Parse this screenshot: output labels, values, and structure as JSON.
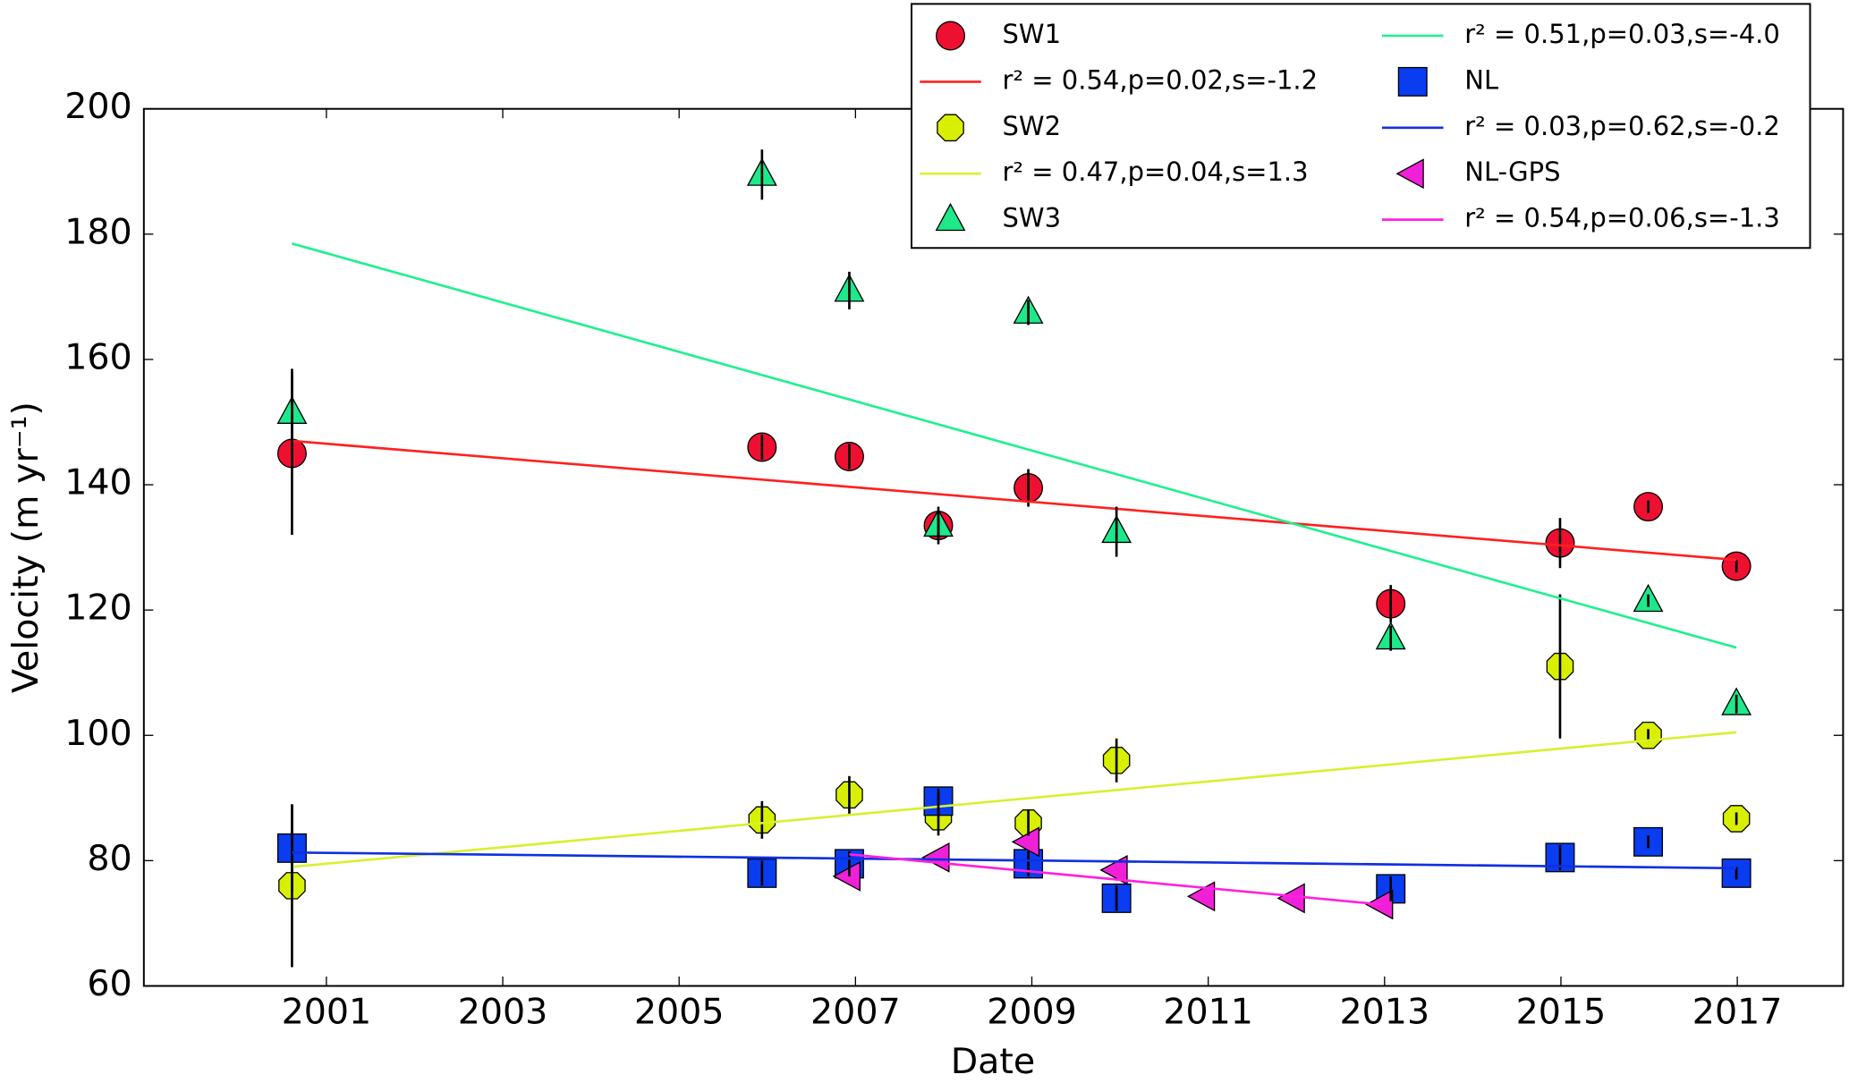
{
  "chart_data": {
    "type": "scatter",
    "xlabel": "Date",
    "ylabel": "Velocity (m yr⁻¹)",
    "xlim": [
      1998.93,
      2018.2
    ],
    "xticks": [
      2001,
      2003,
      2005,
      2007,
      2009,
      2011,
      2013,
      2015,
      2017
    ],
    "ylim": [
      60,
      200
    ],
    "yticks": [
      60,
      80,
      100,
      120,
      140,
      160,
      180,
      200
    ],
    "series": [
      {
        "name": "SW1",
        "color": "#ee1030",
        "marker": "circle",
        "x": [
          2000.61,
          2005.94,
          2006.93,
          2007.94,
          2008.96,
          2013.07,
          2014.99,
          2015.99,
          2016.99
        ],
        "values": [
          145,
          146,
          144.5,
          133.5,
          139.5,
          121,
          130.7,
          136.5,
          127
        ],
        "errors": [
          13,
          2,
          2,
          2,
          3,
          3,
          4,
          1,
          1
        ],
        "fit": {
          "label": "r² = 0.54,p=0.02,s=-1.2",
          "color": "#ff2020",
          "x": [
            2000.61,
            2016.99
          ],
          "values": [
            147,
            128
          ]
        }
      },
      {
        "name": "SW2",
        "color": "#d8f000",
        "marker": "octagon",
        "x": [
          2000.61,
          2005.94,
          2006.93,
          2007.94,
          2008.96,
          2009.96,
          2014.99,
          2015.99,
          2016.99
        ],
        "values": [
          76,
          86.5,
          90.5,
          87,
          86,
          96,
          111,
          100,
          86.7
        ],
        "errors": [
          13,
          3,
          3,
          3,
          2,
          3.5,
          11.5,
          1,
          1
        ],
        "fit": {
          "label": "r² = 0.47,p=0.04,s=1.3",
          "color": "#d8f030",
          "x": [
            2000.61,
            2016.99
          ],
          "values": [
            79,
            100.5
          ]
        }
      },
      {
        "name": "SW3",
        "color": "#1ee88a",
        "marker": "triangle-up",
        "x": [
          2000.61,
          2005.94,
          2006.93,
          2007.94,
          2008.96,
          2009.96,
          2013.07,
          2015.99,
          2016.99
        ],
        "values": [
          151.5,
          189.5,
          171,
          133.5,
          167.5,
          132.5,
          115.5,
          121.5,
          105
        ],
        "errors": [
          7,
          4,
          3,
          3,
          2,
          4,
          2,
          1,
          1.5
        ],
        "fit": {
          "label": "r² = 0.51,p=0.03,s=-4.0",
          "color": "#20f090",
          "x": [
            2000.61,
            2016.99
          ],
          "values": [
            178.5,
            114
          ]
        }
      },
      {
        "name": "NL",
        "color": "#0a3cf0",
        "marker": "square",
        "x": [
          2000.61,
          2005.94,
          2006.93,
          2007.94,
          2008.96,
          2009.96,
          2013.07,
          2014.99,
          2015.99,
          2016.99
        ],
        "values": [
          82,
          78,
          79.5,
          89.5,
          79.5,
          74,
          75.5,
          80.5,
          83,
          78
        ],
        "errors": [
          7,
          2,
          2,
          2,
          2,
          2,
          2,
          2,
          1,
          1
        ],
        "fit": {
          "label": "r² = 0.03,p=0.62,s=-0.2",
          "color": "#1030e0",
          "x": [
            2000.61,
            2016.99
          ],
          "values": [
            81.3,
            78.8
          ]
        }
      },
      {
        "name": "NL-GPS",
        "color": "#f020d8",
        "marker": "triangle-left",
        "x": [
          2006.93,
          2007.94,
          2008.96,
          2009.96,
          2010.95,
          2011.97,
          2012.97
        ],
        "values": [
          77.5,
          80.5,
          83,
          78.5,
          74.3,
          74,
          73
        ],
        "fit": {
          "label": "r² = 0.54,p=0.06,s=-1.3",
          "color": "#ff20e0",
          "x": [
            2006.93,
            2012.97
          ],
          "values": [
            81,
            73
          ]
        }
      }
    ]
  }
}
